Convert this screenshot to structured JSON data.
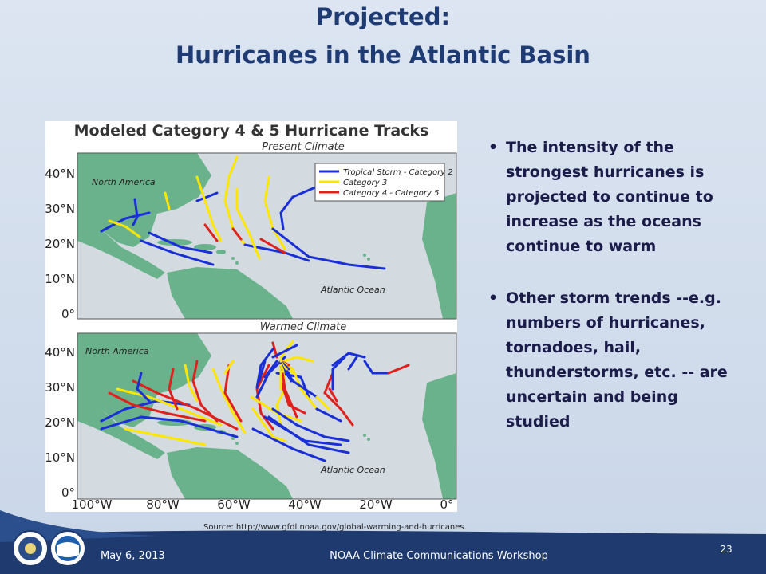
{
  "slide": {
    "title_line1": "Projected:",
    "title_line2": "Hurricanes in the Atlantic Basin"
  },
  "figure": {
    "title": "Modeled Category 4 & 5 Hurricane Tracks",
    "panels": [
      {
        "title": "Present Climate",
        "land_label": "North America",
        "ocean_label": "Atlantic Ocean"
      },
      {
        "title": "Warmed Climate",
        "land_label": "North America",
        "ocean_label": "Atlantic Ocean"
      }
    ],
    "legend": [
      {
        "name": "Tropical Storm - Category 2",
        "color": "#1a2fd6"
      },
      {
        "name": "Category 3",
        "color": "#ffe600"
      },
      {
        "name": "Category 4 - Category 5",
        "color": "#e0201c"
      }
    ],
    "y_axis": [
      "40°N",
      "30°N",
      "20°N",
      "10°N",
      "0°"
    ],
    "x_axis": [
      "100°W",
      "80°W",
      "60°W",
      "40°W",
      "20°W",
      "0°"
    ]
  },
  "bullets": [
    "The intensity of the strongest hurricanes is projected to continue to increase as the oceans continue to warm",
    "Other storm trends --e.g. numbers of hurricanes, tornadoes, hail, thunderstorms, etc. -- are uncertain and being studied"
  ],
  "source": "Source: http://www.gfdl.noaa.gov/global-warming-and-hurricanes.",
  "footer": {
    "date": "May 6, 2013",
    "event": "NOAA Climate Communications Workshop",
    "page": "23"
  }
}
